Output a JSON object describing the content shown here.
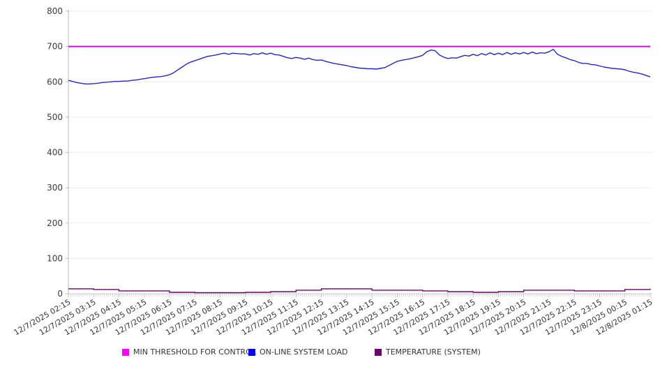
{
  "chart": {
    "legend": [
      {
        "label": "MIN THRESHOLD FOR CONTROL",
        "color": "#ff00ff"
      },
      {
        "label": "ON-LINE SYSTEM LOAD",
        "color": "#0000ee"
      },
      {
        "label": "TEMPERATURE (SYSTEM)",
        "color": "#6a006a"
      }
    ]
  },
  "chart_data": {
    "type": "line",
    "title": "",
    "xlabel": "",
    "ylabel": "",
    "ylim": [
      0,
      800
    ],
    "y_ticks": [
      0,
      100,
      200,
      300,
      400,
      500,
      600,
      700,
      800
    ],
    "grid": "horizontal",
    "legend_position": "bottom",
    "x_minor_tick_minutes": 5,
    "x_tick_labels": [
      "12/7/2025 02:15",
      "12/7/2025 03:15",
      "12/7/2025 04:15",
      "12/7/2025 05:15",
      "12/7/2025 06:15",
      "12/7/2025 07:15",
      "12/7/2025 08:15",
      "12/7/2025 09:15",
      "12/7/2025 10:15",
      "12/7/2025 11:15",
      "12/7/2025 12:15",
      "12/7/2025 13:15",
      "12/7/2025 14:15",
      "12/7/2025 15:15",
      "12/7/2025 16:15",
      "12/7/2025 17:15",
      "12/7/2025 18:15",
      "12/7/2025 19:15",
      "12/7/2025 20:15",
      "12/7/2025 21:15",
      "12/7/2025 22:15",
      "12/7/2025 23:15",
      "12/8/2025 00:15",
      "12/8/2025 01:15"
    ],
    "series": [
      {
        "name": "MIN THRESHOLD FOR CONTROL",
        "render": "threshold",
        "color": "#c911c9",
        "value": 700
      },
      {
        "name": "ON-LINE SYSTEM LOAD",
        "render": "line",
        "color": "#2727ce",
        "sample_interval_minutes": 10,
        "values": [
          604,
          601,
          598,
          596,
          594,
          594,
          595,
          596,
          598,
          599,
          600,
          601,
          601,
          602,
          602,
          604,
          605,
          607,
          609,
          611,
          613,
          614,
          615,
          617,
          620,
          626,
          634,
          642,
          650,
          656,
          660,
          664,
          668,
          672,
          674,
          676,
          679,
          681,
          678,
          681,
          680,
          679,
          679,
          676,
          680,
          678,
          682,
          678,
          681,
          677,
          676,
          672,
          668,
          666,
          669,
          667,
          664,
          667,
          663,
          661,
          662,
          658,
          655,
          652,
          650,
          648,
          646,
          643,
          641,
          639,
          638,
          637,
          637,
          636,
          638,
          640,
          646,
          652,
          658,
          661,
          663,
          665,
          668,
          671,
          675,
          685,
          690,
          688,
          676,
          670,
          666,
          668,
          667,
          671,
          675,
          673,
          678,
          674,
          680,
          676,
          682,
          677,
          681,
          677,
          683,
          678,
          682,
          679,
          683,
          679,
          684,
          680,
          682,
          681,
          685,
          692,
          678,
          672,
          668,
          663,
          660,
          655,
          652,
          652,
          649,
          648,
          645,
          642,
          640,
          638,
          637,
          636,
          634,
          630,
          627,
          625,
          622,
          618,
          614
        ]
      },
      {
        "name": "TEMPERATURE (SYSTEM)",
        "render": "step",
        "color": "#6e006e",
        "sample_interval_minutes": 60,
        "values": [
          14,
          12,
          8,
          8,
          4,
          3,
          3,
          4,
          6,
          10,
          14,
          14,
          10,
          10,
          8,
          6,
          4,
          6,
          10,
          10,
          8,
          8,
          12,
          14
        ]
      }
    ]
  }
}
